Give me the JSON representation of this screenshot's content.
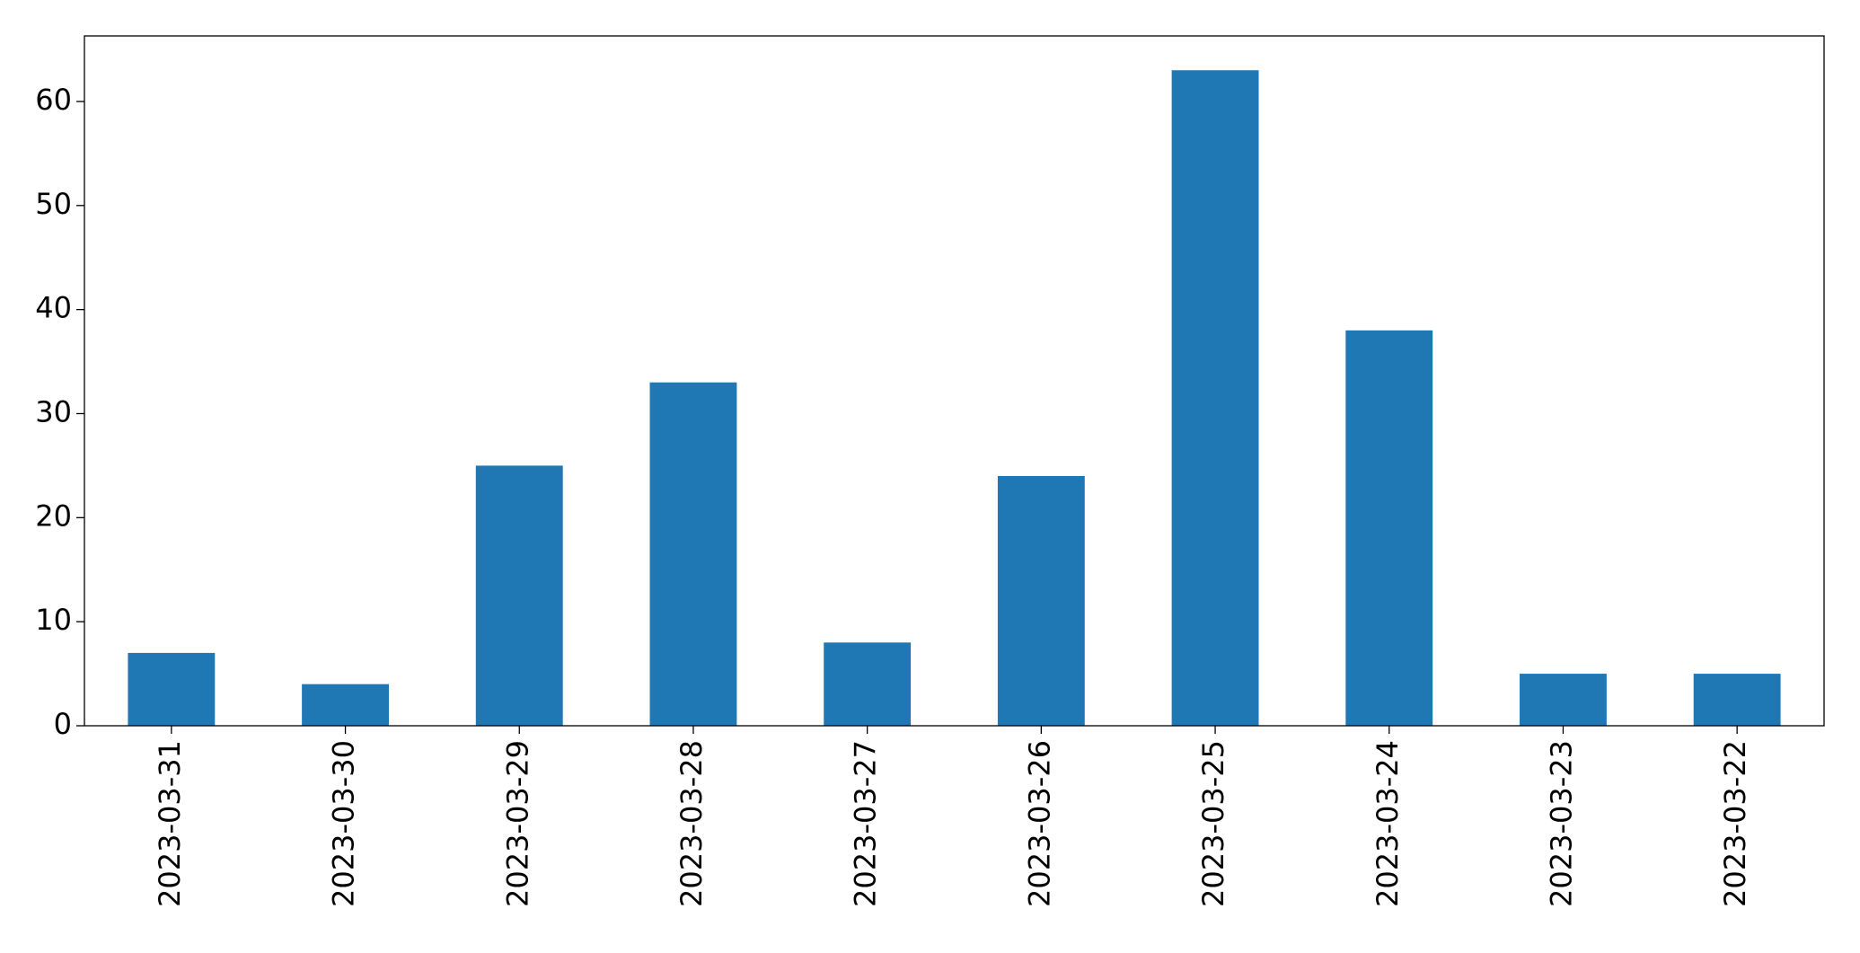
{
  "chart_data": {
    "type": "bar",
    "categories": [
      "2023-03-31",
      "2023-03-30",
      "2023-03-29",
      "2023-03-28",
      "2023-03-27",
      "2023-03-26",
      "2023-03-25",
      "2023-03-24",
      "2023-03-23",
      "2023-03-22"
    ],
    "values": [
      7,
      4,
      25,
      33,
      8,
      24,
      63,
      38,
      5,
      5
    ],
    "color": "#1f77b4",
    "ylim": [
      0,
      66.3
    ],
    "yticks": [
      0,
      10,
      20,
      30,
      40,
      50,
      60
    ],
    "grid": false
  }
}
